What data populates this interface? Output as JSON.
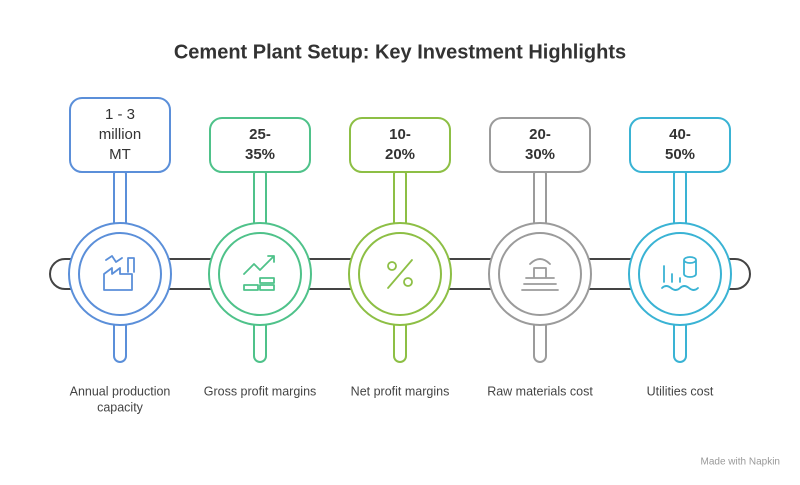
{
  "title": "Cement Plant Setup: Key Investment Highlights",
  "items": [
    {
      "value_lines": [
        "1 - 3",
        "million",
        "MT"
      ],
      "label_lines": [
        "Annual production",
        "capacity"
      ],
      "color": "#5b8fd9"
    },
    {
      "value_lines": [
        "25-",
        "35%"
      ],
      "label_lines": [
        "Gross profit margins"
      ],
      "color": "#4fc28a"
    },
    {
      "value_lines": [
        "10-",
        "20%"
      ],
      "label_lines": [
        "Net profit margins"
      ],
      "color": "#8dbf45"
    },
    {
      "value_lines": [
        "20-",
        "30%"
      ],
      "label_lines": [
        "Raw materials cost"
      ],
      "color": "#9b9b9b"
    },
    {
      "value_lines": [
        "40-",
        "50%"
      ],
      "label_lines": [
        "Utilities cost"
      ],
      "color": "#3ab3d4"
    }
  ],
  "footer": "Made with Napkin"
}
